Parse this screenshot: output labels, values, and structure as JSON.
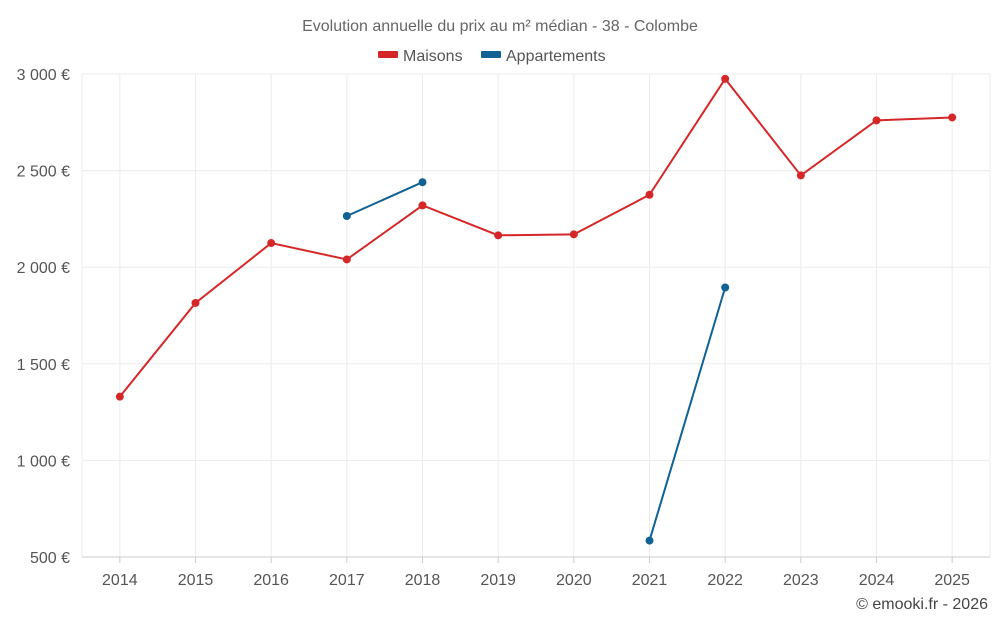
{
  "chart_data": {
    "type": "line",
    "title": "Evolution annuelle du prix au m² médian - 38 - Colombe",
    "categories": [
      "2014",
      "2015",
      "2016",
      "2017",
      "2018",
      "2019",
      "2020",
      "2021",
      "2022",
      "2023",
      "2024",
      "2025"
    ],
    "ylim": [
      500,
      3000
    ],
    "yticks": [
      500,
      1000,
      1500,
      2000,
      2500,
      3000
    ],
    "ytick_labels": [
      "500 €",
      "1 000 €",
      "1 500 €",
      "2 000 €",
      "2 500 €",
      "3 000 €"
    ],
    "grid": true,
    "legend_position": "top-center",
    "series": [
      {
        "name": "Maisons",
        "color": "#d62728",
        "values": [
          1330,
          1815,
          2125,
          2040,
          2320,
          2165,
          2170,
          2375,
          2975,
          2475,
          2760,
          2775
        ]
      },
      {
        "name": "Appartements",
        "color": "#0f6293",
        "values": [
          null,
          null,
          null,
          2265,
          2440,
          null,
          null,
          585,
          1895,
          null,
          null,
          null
        ]
      }
    ]
  },
  "credit": "© emooki.fr - 2026"
}
